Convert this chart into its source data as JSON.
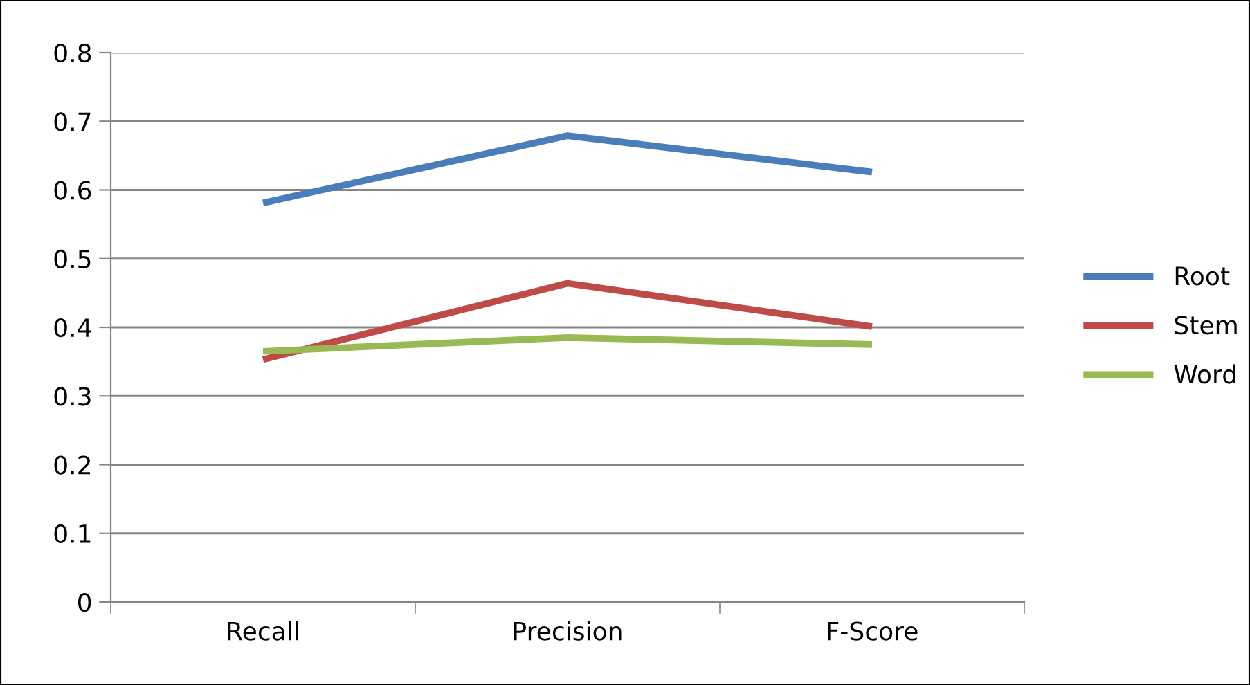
{
  "chart_data": {
    "type": "line",
    "categories": [
      "Recall",
      "Precision",
      "F-Score"
    ],
    "series": [
      {
        "name": "Root",
        "color": "#4a7ebb",
        "values": [
          0.581,
          0.679,
          0.626
        ]
      },
      {
        "name": "Stem",
        "color": "#be4b48",
        "values": [
          0.353,
          0.464,
          0.401
        ]
      },
      {
        "name": "Word",
        "color": "#98b954",
        "values": [
          0.365,
          0.385,
          0.375
        ]
      }
    ],
    "ylim": [
      0,
      0.8
    ],
    "yticks": [
      {
        "value": 0,
        "label": "0"
      },
      0.1,
      0.2,
      0.3,
      0.4,
      0.5,
      0.6,
      0.7,
      0.8
    ],
    "grid": "y",
    "legend": "right",
    "marker": "none",
    "line_style": "solid"
  }
}
